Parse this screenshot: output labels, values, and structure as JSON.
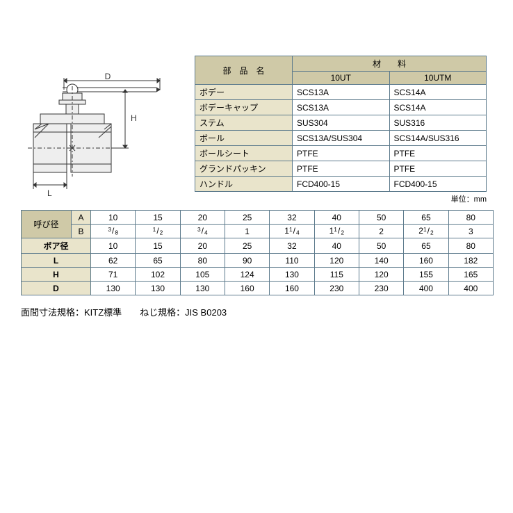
{
  "diagram": {
    "labels": {
      "D": "D",
      "H": "H",
      "L": "L"
    },
    "line_color": "#333333",
    "fill_color": "#d0d0d0"
  },
  "materials_table": {
    "header_part": "部　品　名",
    "header_material": "材　　料",
    "subheaders": [
      "10UT",
      "10UTM"
    ],
    "rows": [
      {
        "part": "ボデー",
        "c1": "SCS13A",
        "c2": "SCS14A"
      },
      {
        "part": "ボデーキャップ",
        "c1": "SCS13A",
        "c2": "SCS14A"
      },
      {
        "part": "ステム",
        "c1": "SUS304",
        "c2": "SUS316"
      },
      {
        "part": "ボール",
        "c1": "SCS13A/SUS304",
        "c2": "SCS14A/SUS316"
      },
      {
        "part": "ボールシート",
        "c1": "PTFE",
        "c2": "PTFE"
      },
      {
        "part": "グランドパッキン",
        "c1": "PTFE",
        "c2": "PTFE"
      },
      {
        "part": "ハンドル",
        "c1": "FCD400-15",
        "c2": "FCD400-15"
      }
    ],
    "unit": "単位：mm"
  },
  "dimensions_table": {
    "yobikei": "呼び径",
    "A": "A",
    "B": "B",
    "rows_header_A": [
      "10",
      "15",
      "20",
      "25",
      "32",
      "40",
      "50",
      "65",
      "80"
    ],
    "rows_header_B": [
      "3/8",
      "1/2",
      "3/4",
      "1",
      "1 1/4",
      "1 1/2",
      "2",
      "2 1/2",
      "3"
    ],
    "rows": [
      {
        "label": "ボア径",
        "vals": [
          "10",
          "15",
          "20",
          "25",
          "32",
          "40",
          "50",
          "65",
          "80"
        ]
      },
      {
        "label": "L",
        "vals": [
          "62",
          "65",
          "80",
          "90",
          "110",
          "120",
          "140",
          "160",
          "182"
        ]
      },
      {
        "label": "H",
        "vals": [
          "71",
          "102",
          "105",
          "124",
          "130",
          "115",
          "120",
          "155",
          "165"
        ]
      },
      {
        "label": "D",
        "vals": [
          "130",
          "130",
          "130",
          "160",
          "160",
          "230",
          "230",
          "400",
          "400"
        ]
      }
    ]
  },
  "footer": "面間寸法規格：KITZ標準　　ねじ規格：JIS B0203"
}
